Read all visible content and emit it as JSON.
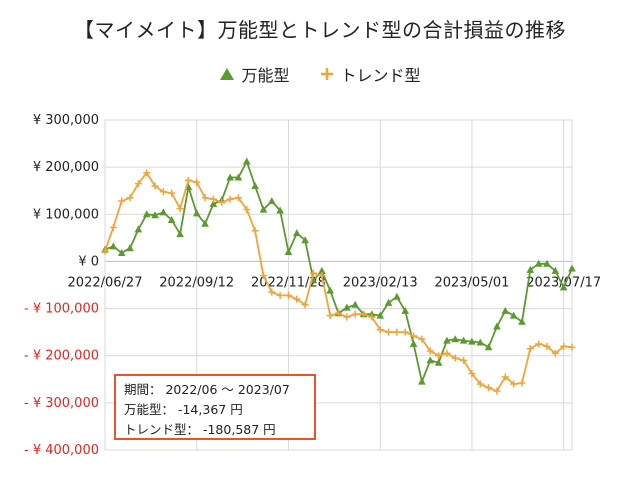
{
  "title": "【マイメイト】万能型とトレンド型の合計損益の推移",
  "legend": {
    "bannou": "万能型",
    "trend": "トレンド型"
  },
  "colors": {
    "bannou": "#5a9a2f",
    "trend": "#f2a33a",
    "negative_tick": "#e8231c",
    "summary_border": "#e8552a"
  },
  "summary": {
    "period": "期間： 2022/06 ～ 2023/07",
    "bannou": "万能型： -14,367 円",
    "trend": "トレンド型： -180,587 円"
  },
  "chart_data": {
    "type": "line",
    "title": "【マイメイト】万能型とトレンド型の合計損益の推移",
    "ylim": [
      -400000,
      300000
    ],
    "y_ticks": [
      {
        "value": 300000,
        "label": "¥ 300,000"
      },
      {
        "value": 200000,
        "label": "¥ 200,000"
      },
      {
        "value": 100000,
        "label": "¥ 100,000"
      },
      {
        "value": 0,
        "label": "¥ 0"
      },
      {
        "value": -100000,
        "label": "- ¥ 100,000"
      },
      {
        "value": -200000,
        "label": "- ¥ 200,000"
      },
      {
        "value": -300000,
        "label": "- ¥ 300,000"
      },
      {
        "value": -400000,
        "label": "- ¥ 400,000"
      }
    ],
    "x_ticks": [
      {
        "index": 0,
        "label": "2022/06/27"
      },
      {
        "index": 11,
        "label": "2022/09/12"
      },
      {
        "index": 22,
        "label": "2022/11/28"
      },
      {
        "index": 33,
        "label": "2023/02/13"
      },
      {
        "index": 44,
        "label": "2023/05/01"
      },
      {
        "index": 55,
        "label": "2023/07/17"
      }
    ],
    "grid": true,
    "legend_position": "top",
    "series": [
      {
        "name": "万能型",
        "marker": "triangle",
        "values": [
          25000,
          32000,
          18000,
          28000,
          68000,
          100000,
          98000,
          104000,
          88000,
          58000,
          158000,
          102000,
          80000,
          122000,
          130000,
          178000,
          178000,
          212000,
          160000,
          110000,
          128000,
          108000,
          20000,
          60000,
          45000,
          -40000,
          -20000,
          -62000,
          -110000,
          -98000,
          -92000,
          -112000,
          -112000,
          -115000,
          -88000,
          -75000,
          -105000,
          -175000,
          -255000,
          -210000,
          -215000,
          -168000,
          -165000,
          -168000,
          -170000,
          -172000,
          -182000,
          -138000,
          -105000,
          -115000,
          -128000,
          -18000,
          -5000,
          -5000,
          -20000,
          -55000,
          -15000
        ]
      },
      {
        "name": "トレンド型",
        "marker": "cross",
        "values": [
          22000,
          72000,
          128000,
          135000,
          165000,
          188000,
          160000,
          148000,
          145000,
          112000,
          172000,
          168000,
          135000,
          132000,
          125000,
          132000,
          135000,
          110000,
          65000,
          -30000,
          -65000,
          -72000,
          -72000,
          -80000,
          -92000,
          -25000,
          -30000,
          -115000,
          -110000,
          -118000,
          -112000,
          -112000,
          -118000,
          -145000,
          -150000,
          -150000,
          -150000,
          -158000,
          -165000,
          -190000,
          -200000,
          -195000,
          -205000,
          -210000,
          -238000,
          -260000,
          -268000,
          -275000,
          -245000,
          -260000,
          -258000,
          -185000,
          -175000,
          -180000,
          -195000,
          -180000,
          -182000
        ]
      }
    ]
  }
}
